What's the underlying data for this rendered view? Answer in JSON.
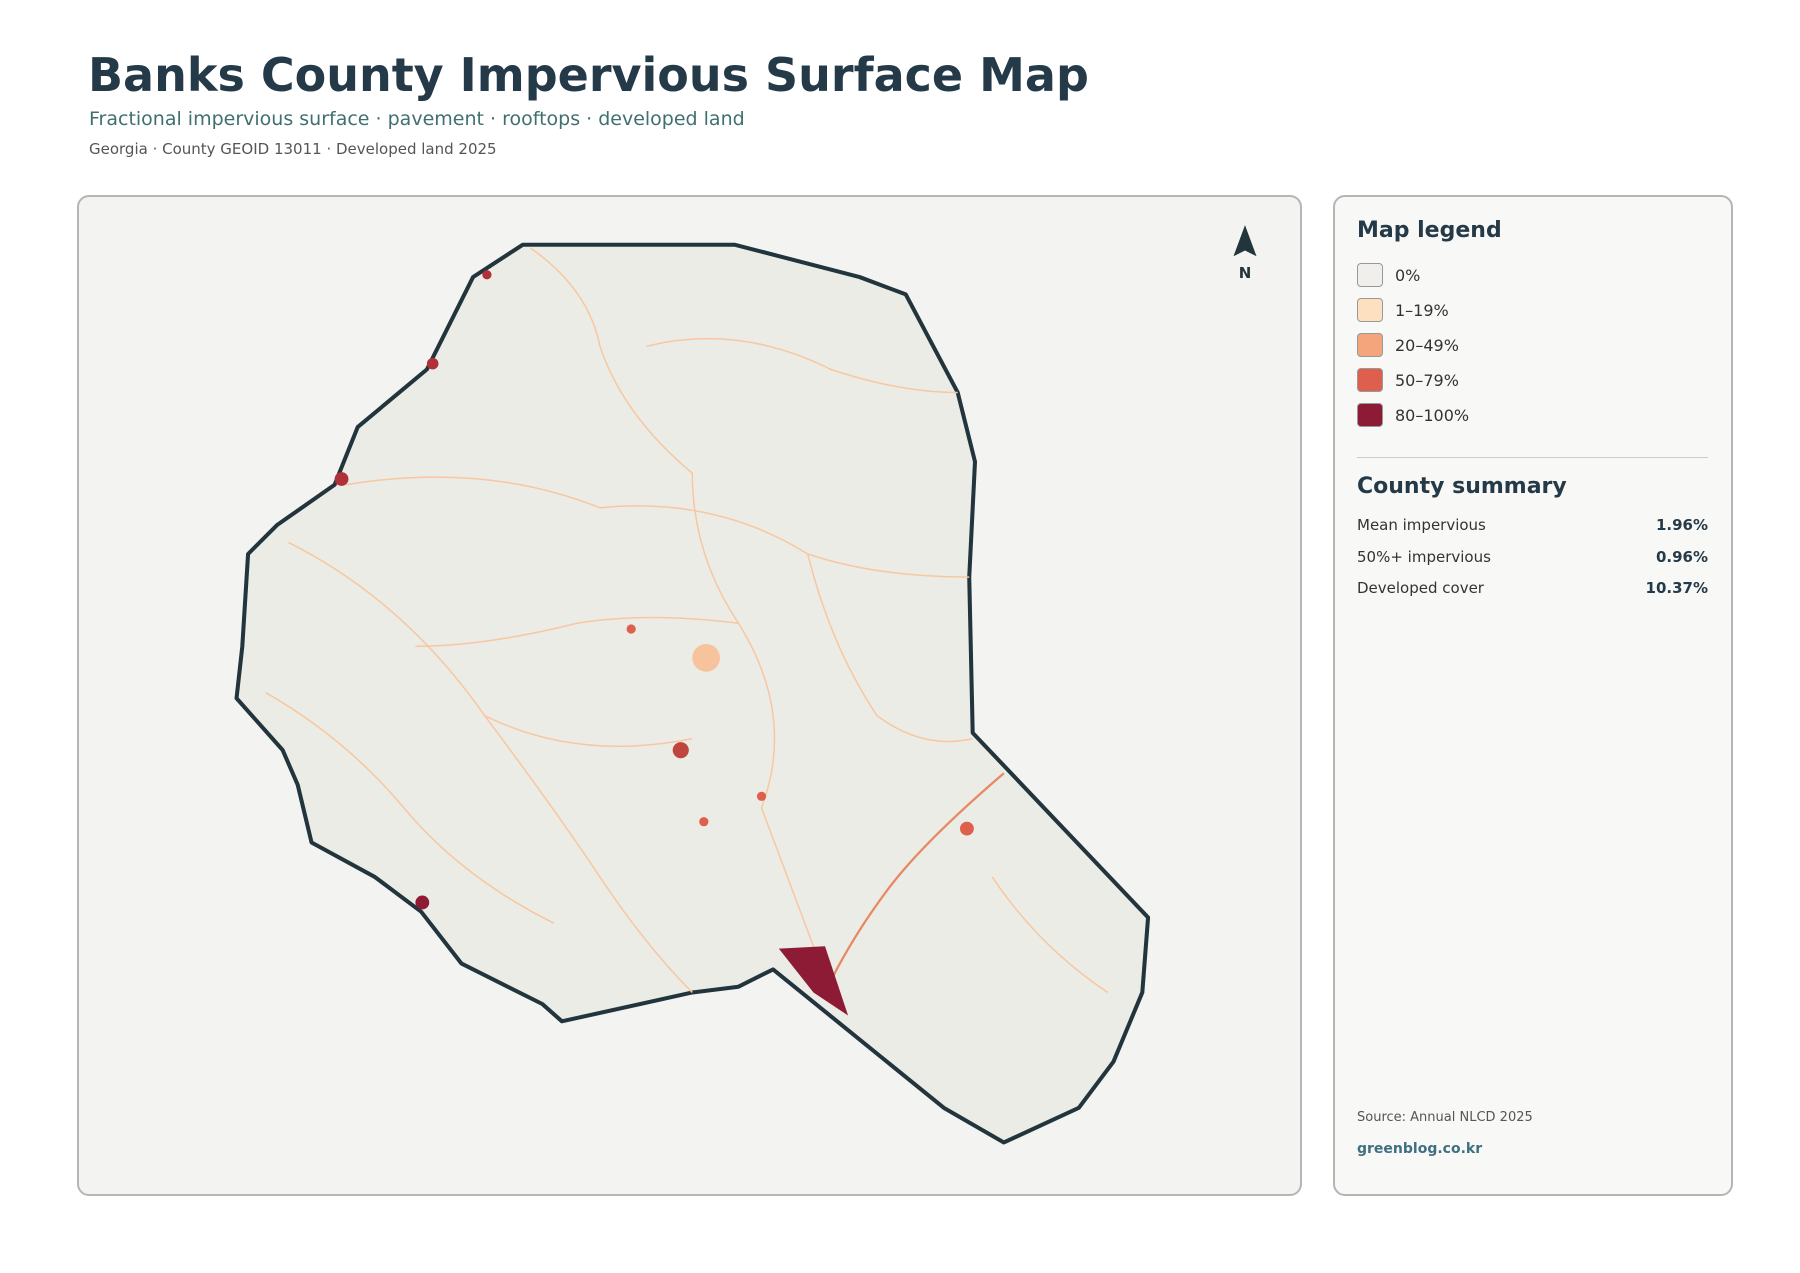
{
  "header": {
    "title": "Banks County Impervious Surface Map",
    "subtitle": "Fractional impervious surface · pavement · rooftops · developed land",
    "meta": "Georgia · County GEOID 13011 · Developed land 2025"
  },
  "map": {
    "north_label": "N"
  },
  "legend": {
    "title": "Map legend",
    "items": [
      {
        "label": "0%",
        "color": "#f0efeb"
      },
      {
        "label": "1–19%",
        "color": "#fde0c0"
      },
      {
        "label": "20–49%",
        "color": "#f4a57c"
      },
      {
        "label": "50–79%",
        "color": "#de5f4d"
      },
      {
        "label": "80–100%",
        "color": "#8e1b35"
      }
    ]
  },
  "summary": {
    "title": "County summary",
    "rows": [
      {
        "label": "Mean impervious",
        "value": "1.96%"
      },
      {
        "label": "50%+ impervious",
        "value": "0.96%"
      },
      {
        "label": "Developed cover",
        "value": "10.37%"
      }
    ]
  },
  "footer": {
    "source": "Source: Annual NLCD 2025",
    "site": "greenblog.co.kr"
  }
}
